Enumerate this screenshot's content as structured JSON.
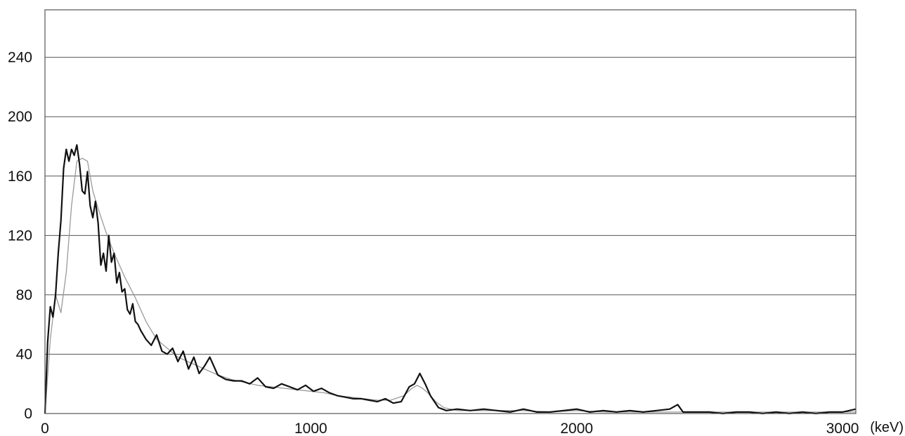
{
  "chart_data": {
    "type": "line",
    "title": "",
    "xlabel": "",
    "ylabel": "",
    "x_unit_label": "(keV)",
    "xlim": [
      0,
      3050
    ],
    "ylim": [
      0,
      272
    ],
    "x_ticks": [
      0,
      1000,
      2000,
      3000
    ],
    "y_ticks": [
      0,
      40,
      80,
      120,
      160,
      200,
      240
    ],
    "x_tick_labels": [
      "0",
      "1000",
      "2000",
      "3000"
    ],
    "y_tick_labels": [
      "0",
      "40",
      "80",
      "120",
      "160",
      "200",
      "240"
    ],
    "grid": "horizontal",
    "legend": "none",
    "colors": {
      "measured": "#111111",
      "smoothed": "#9a9a9a",
      "grid": "#555555",
      "frame": "#555555"
    },
    "series": [
      {
        "style": "measured",
        "x": [
          0,
          10,
          20,
          30,
          40,
          50,
          60,
          70,
          80,
          90,
          100,
          110,
          120,
          130,
          140,
          150,
          160,
          170,
          180,
          190,
          200,
          210,
          220,
          230,
          240,
          250,
          260,
          270,
          280,
          290,
          300,
          310,
          320,
          330,
          340,
          350,
          360,
          380,
          400,
          420,
          440,
          460,
          480,
          500,
          520,
          540,
          560,
          580,
          600,
          620,
          650,
          680,
          710,
          740,
          770,
          800,
          830,
          860,
          890,
          920,
          950,
          980,
          1010,
          1040,
          1070,
          1100,
          1130,
          1160,
          1190,
          1220,
          1250,
          1280,
          1310,
          1340,
          1370,
          1390,
          1410,
          1430,
          1450,
          1480,
          1510,
          1550,
          1600,
          1650,
          1700,
          1750,
          1800,
          1850,
          1900,
          1950,
          2000,
          2050,
          2100,
          2150,
          2200,
          2250,
          2300,
          2350,
          2380,
          2400,
          2450,
          2500,
          2550,
          2600,
          2650,
          2700,
          2750,
          2800,
          2850,
          2900,
          2950,
          3000,
          3050
        ],
        "y": [
          0,
          48,
          72,
          65,
          80,
          108,
          130,
          165,
          178,
          170,
          178,
          174,
          181,
          168,
          150,
          148,
          163,
          140,
          132,
          143,
          128,
          100,
          108,
          96,
          120,
          102,
          108,
          88,
          95,
          82,
          84,
          70,
          67,
          74,
          62,
          60,
          56,
          50,
          46,
          53,
          42,
          40,
          44,
          35,
          42,
          30,
          38,
          27,
          32,
          38,
          26,
          23,
          22,
          22,
          20,
          24,
          18,
          17,
          20,
          18,
          16,
          19,
          15,
          17,
          14,
          12,
          11,
          10,
          10,
          9,
          8,
          10,
          7,
          8,
          18,
          20,
          27,
          20,
          12,
          4,
          2,
          3,
          2,
          3,
          2,
          1,
          3,
          1,
          1,
          2,
          3,
          1,
          2,
          1,
          2,
          1,
          2,
          3,
          6,
          1,
          1,
          1,
          0,
          1,
          1,
          0,
          1,
          0,
          1,
          0,
          1,
          1,
          3
        ]
      },
      {
        "style": "smoothed",
        "x": [
          0,
          20,
          40,
          60,
          80,
          100,
          120,
          140,
          160,
          180,
          200,
          230,
          260,
          300,
          340,
          380,
          420,
          460,
          500,
          550,
          600,
          650,
          700,
          750,
          800,
          850,
          900,
          950,
          1000,
          1050,
          1100,
          1150,
          1200,
          1250,
          1300,
          1350,
          1380,
          1400,
          1420,
          1440,
          1470,
          1500,
          1550,
          1600,
          1700,
          1800,
          1900,
          2000,
          2100,
          2200,
          2300,
          2400,
          2500,
          2600,
          2700,
          2800,
          2900,
          3000,
          3050
        ],
        "y": [
          0,
          50,
          80,
          68,
          95,
          140,
          170,
          172,
          170,
          150,
          138,
          122,
          108,
          92,
          78,
          62,
          50,
          44,
          38,
          34,
          30,
          26,
          23,
          21,
          19,
          18,
          17,
          16,
          15,
          14,
          12,
          11,
          10,
          9,
          9,
          12,
          17,
          19,
          17,
          14,
          8,
          4,
          2,
          2,
          2,
          2,
          1,
          2,
          1,
          1,
          1,
          1,
          1,
          1,
          1,
          1,
          1,
          1,
          1
        ]
      }
    ]
  }
}
